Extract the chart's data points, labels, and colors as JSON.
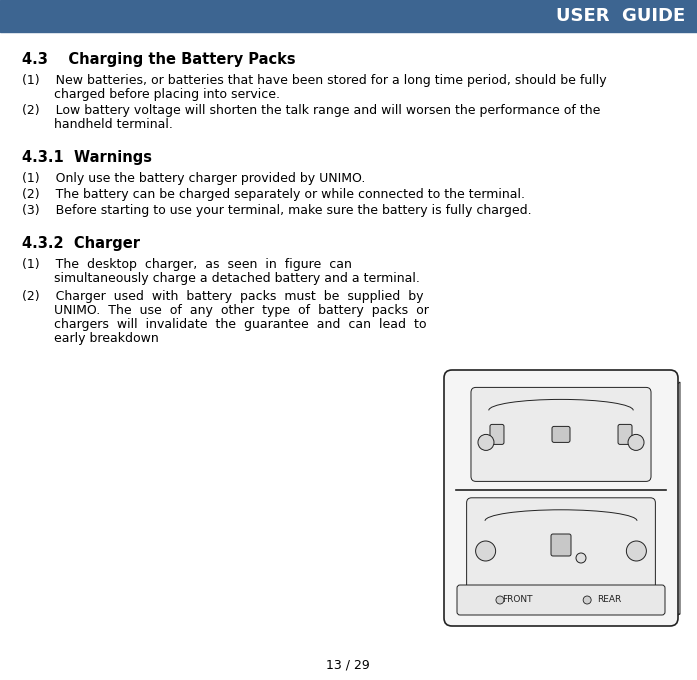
{
  "header_color": "#3d6591",
  "header_text": "USER  GUIDE",
  "header_text_color": "#ffffff",
  "background_color": "#ffffff",
  "footer_text": "13 / 29",
  "section_43_title": "4.3    Charging the Battery Packs",
  "section_431_title": "4.3.1  Warnings",
  "section_432_title": "4.3.2  Charger",
  "item_43_1_line1": "(1)    New batteries, or batteries that have been stored for a long time period, should be fully",
  "item_43_1_line2": "        charged before placing into service.",
  "item_43_2_line1": "(2)    Low battery voltage will shorten the talk range and will worsen the performance of the",
  "item_43_2_line2": "        handheld terminal.",
  "item_431_1": "(1)    Only use the battery charger provided by UNIMO.",
  "item_431_2": "(2)    The battery can be charged separately or while connected to the terminal.",
  "item_431_3": "(3)    Before starting to use your terminal, make sure the battery is fully charged.",
  "item_432_1_line1": "(1)    The  desktop  charger,  as  seen  in  figure  can",
  "item_432_1_line2": "        simultaneously charge a detached battery and a terminal.",
  "item_432_2_line1": "(2)    Charger  used  with  battery  packs  must  be  supplied  by",
  "item_432_2_line2": "        UNIMO.  The  use  of  any  other  type  of  battery  packs  or",
  "item_432_2_line3": "        chargers  will  invalidate  the  guarantee  and  can  lead  to",
  "item_432_2_line4": "        early breakdown",
  "text_color": "#000000",
  "fig_width": 6.97,
  "fig_height": 6.8
}
